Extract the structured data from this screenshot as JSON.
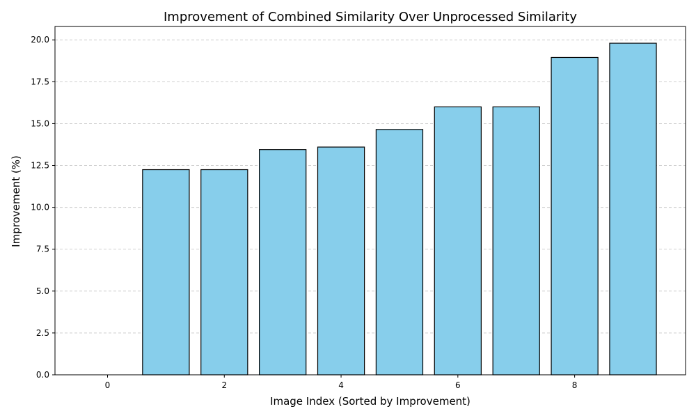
{
  "chart_data": {
    "type": "bar",
    "title": "Improvement of Combined Similarity Over Unprocessed Similarity",
    "xlabel": "Image Index (Sorted by Improvement)",
    "ylabel": "Improvement (%)",
    "x": [
      0,
      1,
      2,
      3,
      4,
      5,
      6,
      7,
      8,
      9
    ],
    "values": [
      0.0,
      12.25,
      12.25,
      13.45,
      13.6,
      14.65,
      16.0,
      16.0,
      18.95,
      19.8
    ],
    "xlim": [
      -0.9,
      9.9
    ],
    "ylim": [
      0,
      20.8
    ],
    "xticks": [
      0,
      2,
      4,
      6,
      8
    ],
    "xtick_labels": [
      "0",
      "2",
      "4",
      "6",
      "8"
    ],
    "yticks": [
      0,
      2.5,
      5,
      7.5,
      10,
      12.5,
      15,
      17.5,
      20
    ],
    "ytick_labels": [
      "0.0",
      "2.5",
      "5.0",
      "7.5",
      "10.0",
      "12.5",
      "15.0",
      "17.5",
      "20.0"
    ],
    "grid": "y-dashed",
    "legend": "none",
    "colors": {
      "bar_fill": "#87ceeb",
      "bar_edge": "#000000",
      "grid": "#c8c8c8",
      "axis": "#000000"
    }
  }
}
